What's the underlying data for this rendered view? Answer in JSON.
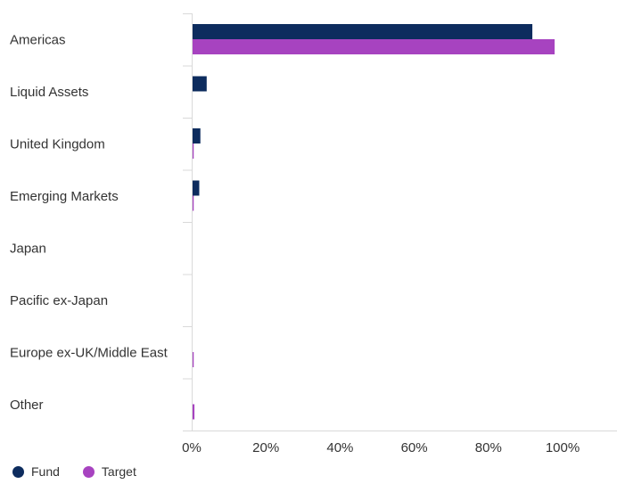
{
  "chart_data": {
    "type": "bar",
    "orientation": "horizontal",
    "categories": [
      "Americas",
      "Liquid Assets",
      "United Kingdom",
      "Emerging Markets",
      "Japan",
      "Pacific ex-Japan",
      "Europe ex-UK/Middle East",
      "Other"
    ],
    "series": [
      {
        "name": "Fund",
        "color": "#0d2c5e",
        "values": [
          91.6,
          3.8,
          2.1,
          1.8,
          0.0,
          0.0,
          0.0,
          0.0
        ]
      },
      {
        "name": "Target",
        "color": "#a743c0",
        "values": [
          97.6,
          0.0,
          0.3,
          0.3,
          0.0,
          0.0,
          0.3,
          0.5
        ]
      }
    ],
    "xticks": [
      "0%",
      "20%",
      "40%",
      "60%",
      "80%",
      "100%"
    ],
    "xlim": [
      0,
      118
    ],
    "xlabel": "",
    "ylabel": "",
    "title": "",
    "grid": false,
    "legend_position": "bottom-left"
  }
}
